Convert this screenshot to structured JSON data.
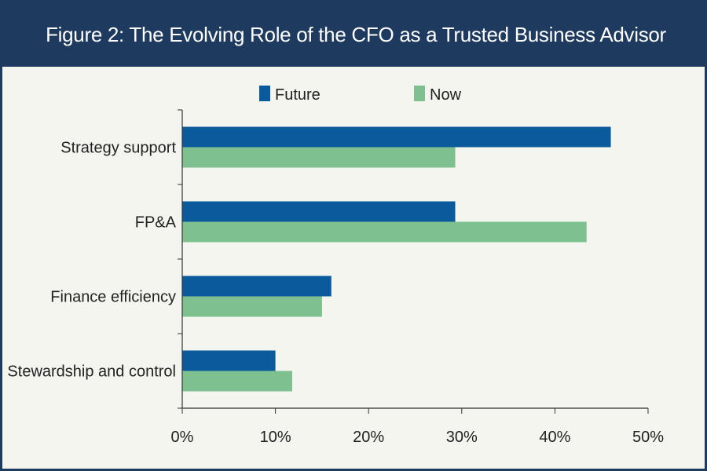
{
  "chart_data": {
    "type": "bar",
    "orientation": "horizontal",
    "title": "Figure 2: The Evolving Role of the CFO as a Trusted Business Advisor",
    "categories": [
      "Strategy support",
      "FP&A",
      "Finance efficiency",
      "Stewardship and control"
    ],
    "series": [
      {
        "name": "Future",
        "color": "#0a5a9c",
        "values": [
          46,
          29.3,
          16,
          10
        ]
      },
      {
        "name": "Now",
        "color": "#7ec08f",
        "values": [
          29.3,
          43.4,
          15,
          11.8
        ]
      }
    ],
    "xlim": [
      0,
      50
    ],
    "xticks": [
      "0%",
      "10%",
      "20%",
      "30%",
      "40%",
      "50%"
    ],
    "legend_position": "top",
    "grid": false
  }
}
